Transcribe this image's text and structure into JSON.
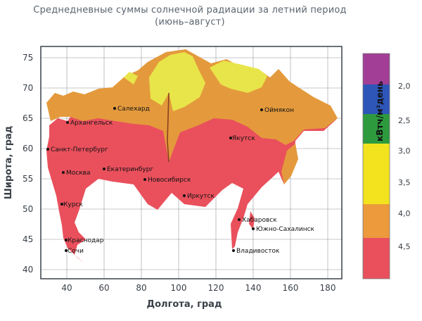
{
  "title": {
    "line1": "Среднедневные суммы солнечной радиации за летний период",
    "line2": "(июнь–август)"
  },
  "axes": {
    "xlabel": "Долгота, град",
    "ylabel": "Широта, град",
    "x_ticks": [
      "40",
      "60",
      "80",
      "100",
      "120",
      "140",
      "160",
      "180"
    ],
    "y_ticks": [
      "75",
      "70",
      "65",
      "60",
      "55",
      "50",
      "45",
      "40"
    ]
  },
  "legend": {
    "unit": "кВтч/м²день",
    "ticks": [
      "2,0",
      "2,5",
      "3,0",
      "3,5",
      "4,0",
      "4,5"
    ],
    "colors": [
      "#a23e96",
      "#2e55b8",
      "#2e9a3e",
      "#f2e31e",
      "#ec9a3c",
      "#e9505c"
    ]
  },
  "zone_colors": {
    "low": "#e8e54a",
    "mid": "#e49a3c",
    "high": "#e9505c"
  },
  "cities": [
    {
      "name": "Салехард"
    },
    {
      "name": "Архангельск"
    },
    {
      "name": "Санкт-Петербург"
    },
    {
      "name": "Москва"
    },
    {
      "name": "Екатеринбург"
    },
    {
      "name": "Новосибирск"
    },
    {
      "name": "Иркутск"
    },
    {
      "name": "Якутск"
    },
    {
      "name": "Оймякон"
    },
    {
      "name": "Хабаровск"
    },
    {
      "name": "Южно-Сахалинск"
    },
    {
      "name": "Владивосток"
    },
    {
      "name": "Курск"
    },
    {
      "name": "Краснодар"
    },
    {
      "name": "Сочи"
    }
  ]
}
